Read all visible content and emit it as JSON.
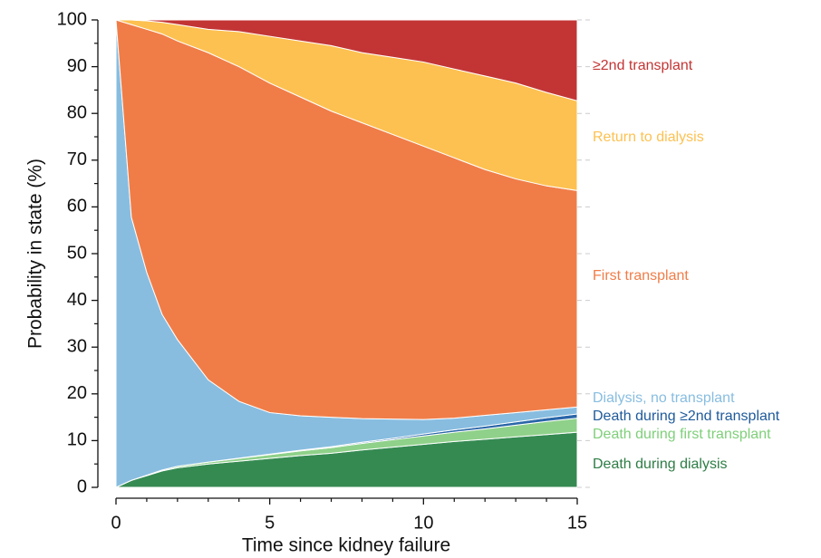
{
  "chart_data": {
    "type": "stacked-area",
    "x_label": "Time since kidney failure",
    "y_label": "Probability in state (%)",
    "x": [
      0,
      0.5,
      1,
      1.5,
      2,
      3,
      4,
      5,
      6,
      7,
      8,
      9,
      10,
      11,
      12,
      13,
      14,
      15
    ],
    "xlim": [
      0,
      15
    ],
    "xticks": [
      0,
      5,
      10,
      15
    ],
    "ylim": [
      0,
      100
    ],
    "yticks": [
      0,
      10,
      20,
      30,
      40,
      50,
      60,
      70,
      80,
      90,
      100
    ],
    "series": [
      {
        "name": "Death during dialysis",
        "color": "#358a52",
        "values": [
          0,
          1.5,
          2.5,
          3.5,
          4.2,
          5,
          5.6,
          6.2,
          6.8,
          7.3,
          8,
          8.6,
          9.2,
          9.8,
          10.3,
          10.8,
          11.3,
          11.8
        ]
      },
      {
        "name": "Death during first transplant",
        "color": "#8fd18a",
        "values": [
          0,
          0,
          0.1,
          0.2,
          0.3,
          0.4,
          0.6,
          0.8,
          1,
          1.2,
          1.4,
          1.6,
          1.8,
          2,
          2.2,
          2.5,
          2.8,
          3
        ]
      },
      {
        "name": "Death during ≥2nd transplant",
        "color": "#2a66a8",
        "values": [
          0,
          0,
          0,
          0,
          0,
          0,
          0.05,
          0.1,
          0.15,
          0.2,
          0.25,
          0.3,
          0.4,
          0.5,
          0.6,
          0.7,
          0.8,
          0.9
        ]
      },
      {
        "name": "Dialysis, no transplant",
        "color": "#88bde0",
        "values": [
          100,
          56.3,
          43.4,
          33.3,
          27.1,
          17.6,
          12.15,
          8.9,
          7.35,
          6.3,
          5.05,
          4.1,
          3.1,
          2.5,
          2.3,
          2,
          1.7,
          1.5
        ]
      },
      {
        "name": "First transplant",
        "color": "#f07d48",
        "values": [
          0,
          41.2,
          52,
          60,
          63.9,
          70,
          71.6,
          70.5,
          68.2,
          65.5,
          63.3,
          60.9,
          58.5,
          55.7,
          52.6,
          50,
          47.9,
          46.3
        ]
      },
      {
        "name": "Return to dialysis",
        "color": "#fdc151",
        "values": [
          0,
          1,
          1.8,
          2.5,
          3.5,
          5,
          7.5,
          10,
          12,
          14,
          15,
          16.5,
          18,
          19,
          20,
          20.5,
          20,
          19.2
        ]
      },
      {
        "name": "≥2nd transplant",
        "color": "#c33535",
        "values": [
          0,
          0,
          0.2,
          0.5,
          1,
          2,
          2.5,
          3.5,
          4.5,
          5.5,
          7,
          8,
          9,
          10.5,
          12,
          13.5,
          15.5,
          17.3
        ]
      }
    ]
  }
}
